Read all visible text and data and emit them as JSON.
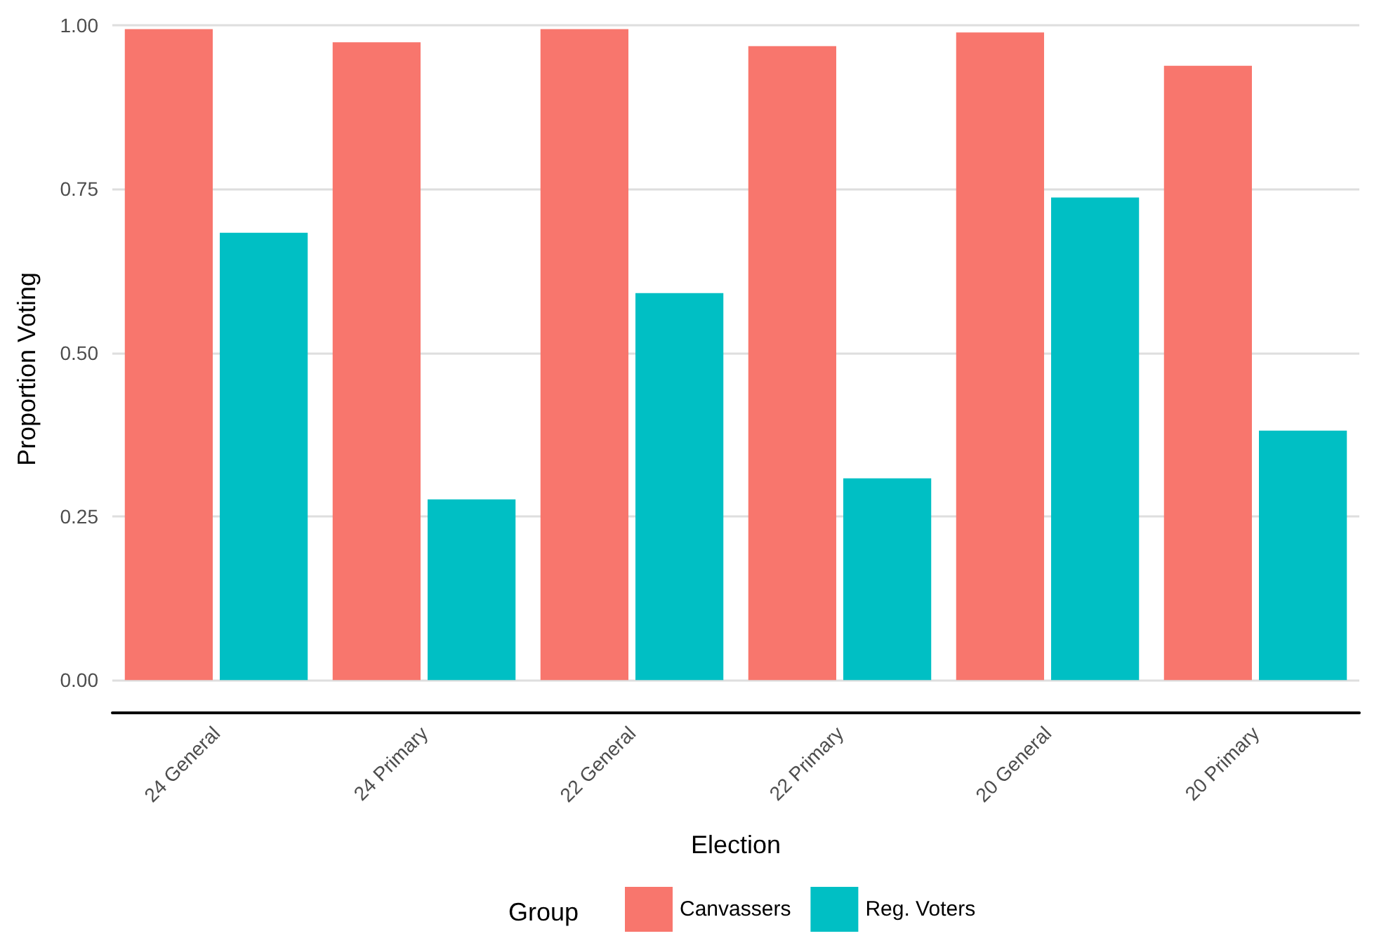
{
  "chart_data": {
    "type": "bar",
    "xlabel": "Election",
    "ylabel": "Proportion Voting",
    "legend_title": "Group",
    "legend": "bottom",
    "grid": "y",
    "categories": [
      "24 General",
      "24 Primary",
      "22 General",
      "22 Primary",
      "20 General",
      "20 Primary"
    ],
    "series": [
      {
        "name": "Canvassers",
        "color": "#f8766d",
        "values": [
          0.994,
          0.974,
          0.994,
          0.968,
          0.989,
          0.938
        ]
      },
      {
        "name": "Reg. Voters",
        "color": "#00bfc4",
        "values": [
          0.683,
          0.276,
          0.591,
          0.308,
          0.737,
          0.381
        ]
      }
    ],
    "ylim": [
      -0.05,
      1
    ],
    "yticks": [
      {
        "value": 0,
        "label": "0.00"
      },
      {
        "value": 0.25,
        "label": "0.25"
      },
      {
        "value": 0.5,
        "label": "0.50"
      },
      {
        "value": 0.75,
        "label": "0.75"
      },
      {
        "value": 1,
        "label": "1.00"
      }
    ]
  }
}
